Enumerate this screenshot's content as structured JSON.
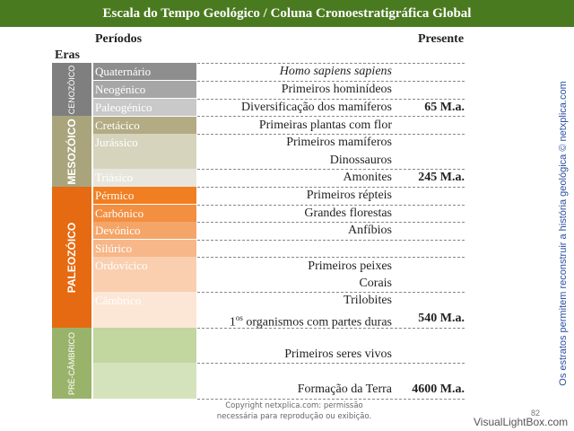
{
  "title": "Escala do Tempo Geológico / Coluna Cronoestratigráfica Global",
  "headers": {
    "periods": "Períodos",
    "present": "Presente",
    "eras": "Eras"
  },
  "eras": [
    {
      "name": "CENOZÓICO",
      "color": "#7f7f7f"
    },
    {
      "name": "MESOZÓICO",
      "color": "#a9a47c"
    },
    {
      "name": "PALEOZÓICO",
      "color": "#e66a11"
    },
    {
      "name": "PRÉ-CÂMBRICO",
      "color": "#9ab36a"
    }
  ],
  "periods": [
    {
      "label": "Quaternário",
      "color": "#8e8e8e"
    },
    {
      "label": "Neogénico",
      "color": "#a6a6a6"
    },
    {
      "label": "Paleogénico",
      "color": "#c9c9c9"
    },
    {
      "label": "Cretácico",
      "color": "#b2ab84"
    },
    {
      "label": "Jurássico",
      "color": "#d7d4be"
    },
    {
      "label": "Triásico",
      "color": "#e8e6dc"
    },
    {
      "label": "Pérmico",
      "color": "#f17f22"
    },
    {
      "label": "Carbónico",
      "color": "#f38f41"
    },
    {
      "label": "Devónico",
      "color": "#f5a567"
    },
    {
      "label": "Silúrico",
      "color": "#f7b789"
    },
    {
      "label": "Ordovícico",
      "color": "#f9cfb0"
    },
    {
      "label": "Câmbrico",
      "color": "#fce6d6"
    },
    {
      "label": "",
      "color": "#c2d6a0"
    },
    {
      "label": "",
      "color": "#d5e3bc"
    }
  ],
  "events": [
    {
      "text": "Homo sapiens sapiens",
      "ma": ""
    },
    {
      "text": "Primeiros hominídeos",
      "ma": ""
    },
    {
      "text": "Diversificação dos mamíferos",
      "ma": "65 M.a."
    },
    {
      "text": "Primeiras plantas com flor",
      "ma": ""
    },
    {
      "text": "Primeiros mamíferos",
      "ma": ""
    },
    {
      "text": "Dinossauros",
      "ma": ""
    },
    {
      "text": "Amonites",
      "ma": "245 M.a."
    },
    {
      "text": "Primeiros répteis",
      "ma": ""
    },
    {
      "text": "Grandes florestas",
      "ma": ""
    },
    {
      "text": "Anfíbios",
      "ma": ""
    },
    {
      "text": "Primeiros peixes",
      "ma": ""
    },
    {
      "text": "Corais",
      "ma": ""
    },
    {
      "text": "Trilobites",
      "ma": ""
    },
    {
      "text": "organismos com partes duras",
      "ma": "540 M.a.",
      "prefix": "1",
      "sup": "os"
    },
    {
      "text": "Primeiros seres vivos",
      "ma": ""
    },
    {
      "text": "Formação da Terra",
      "ma": "4600 M.a."
    }
  ],
  "footer": {
    "line1": "Copyright netxplica.com: permissão",
    "line2": "necessária para reprodução ou exibição."
  },
  "page_number": "82",
  "side_caption": "Os estratos permitem reconstruir a história geológica © netxplica.com",
  "watermark": "VisualLightBox.com"
}
